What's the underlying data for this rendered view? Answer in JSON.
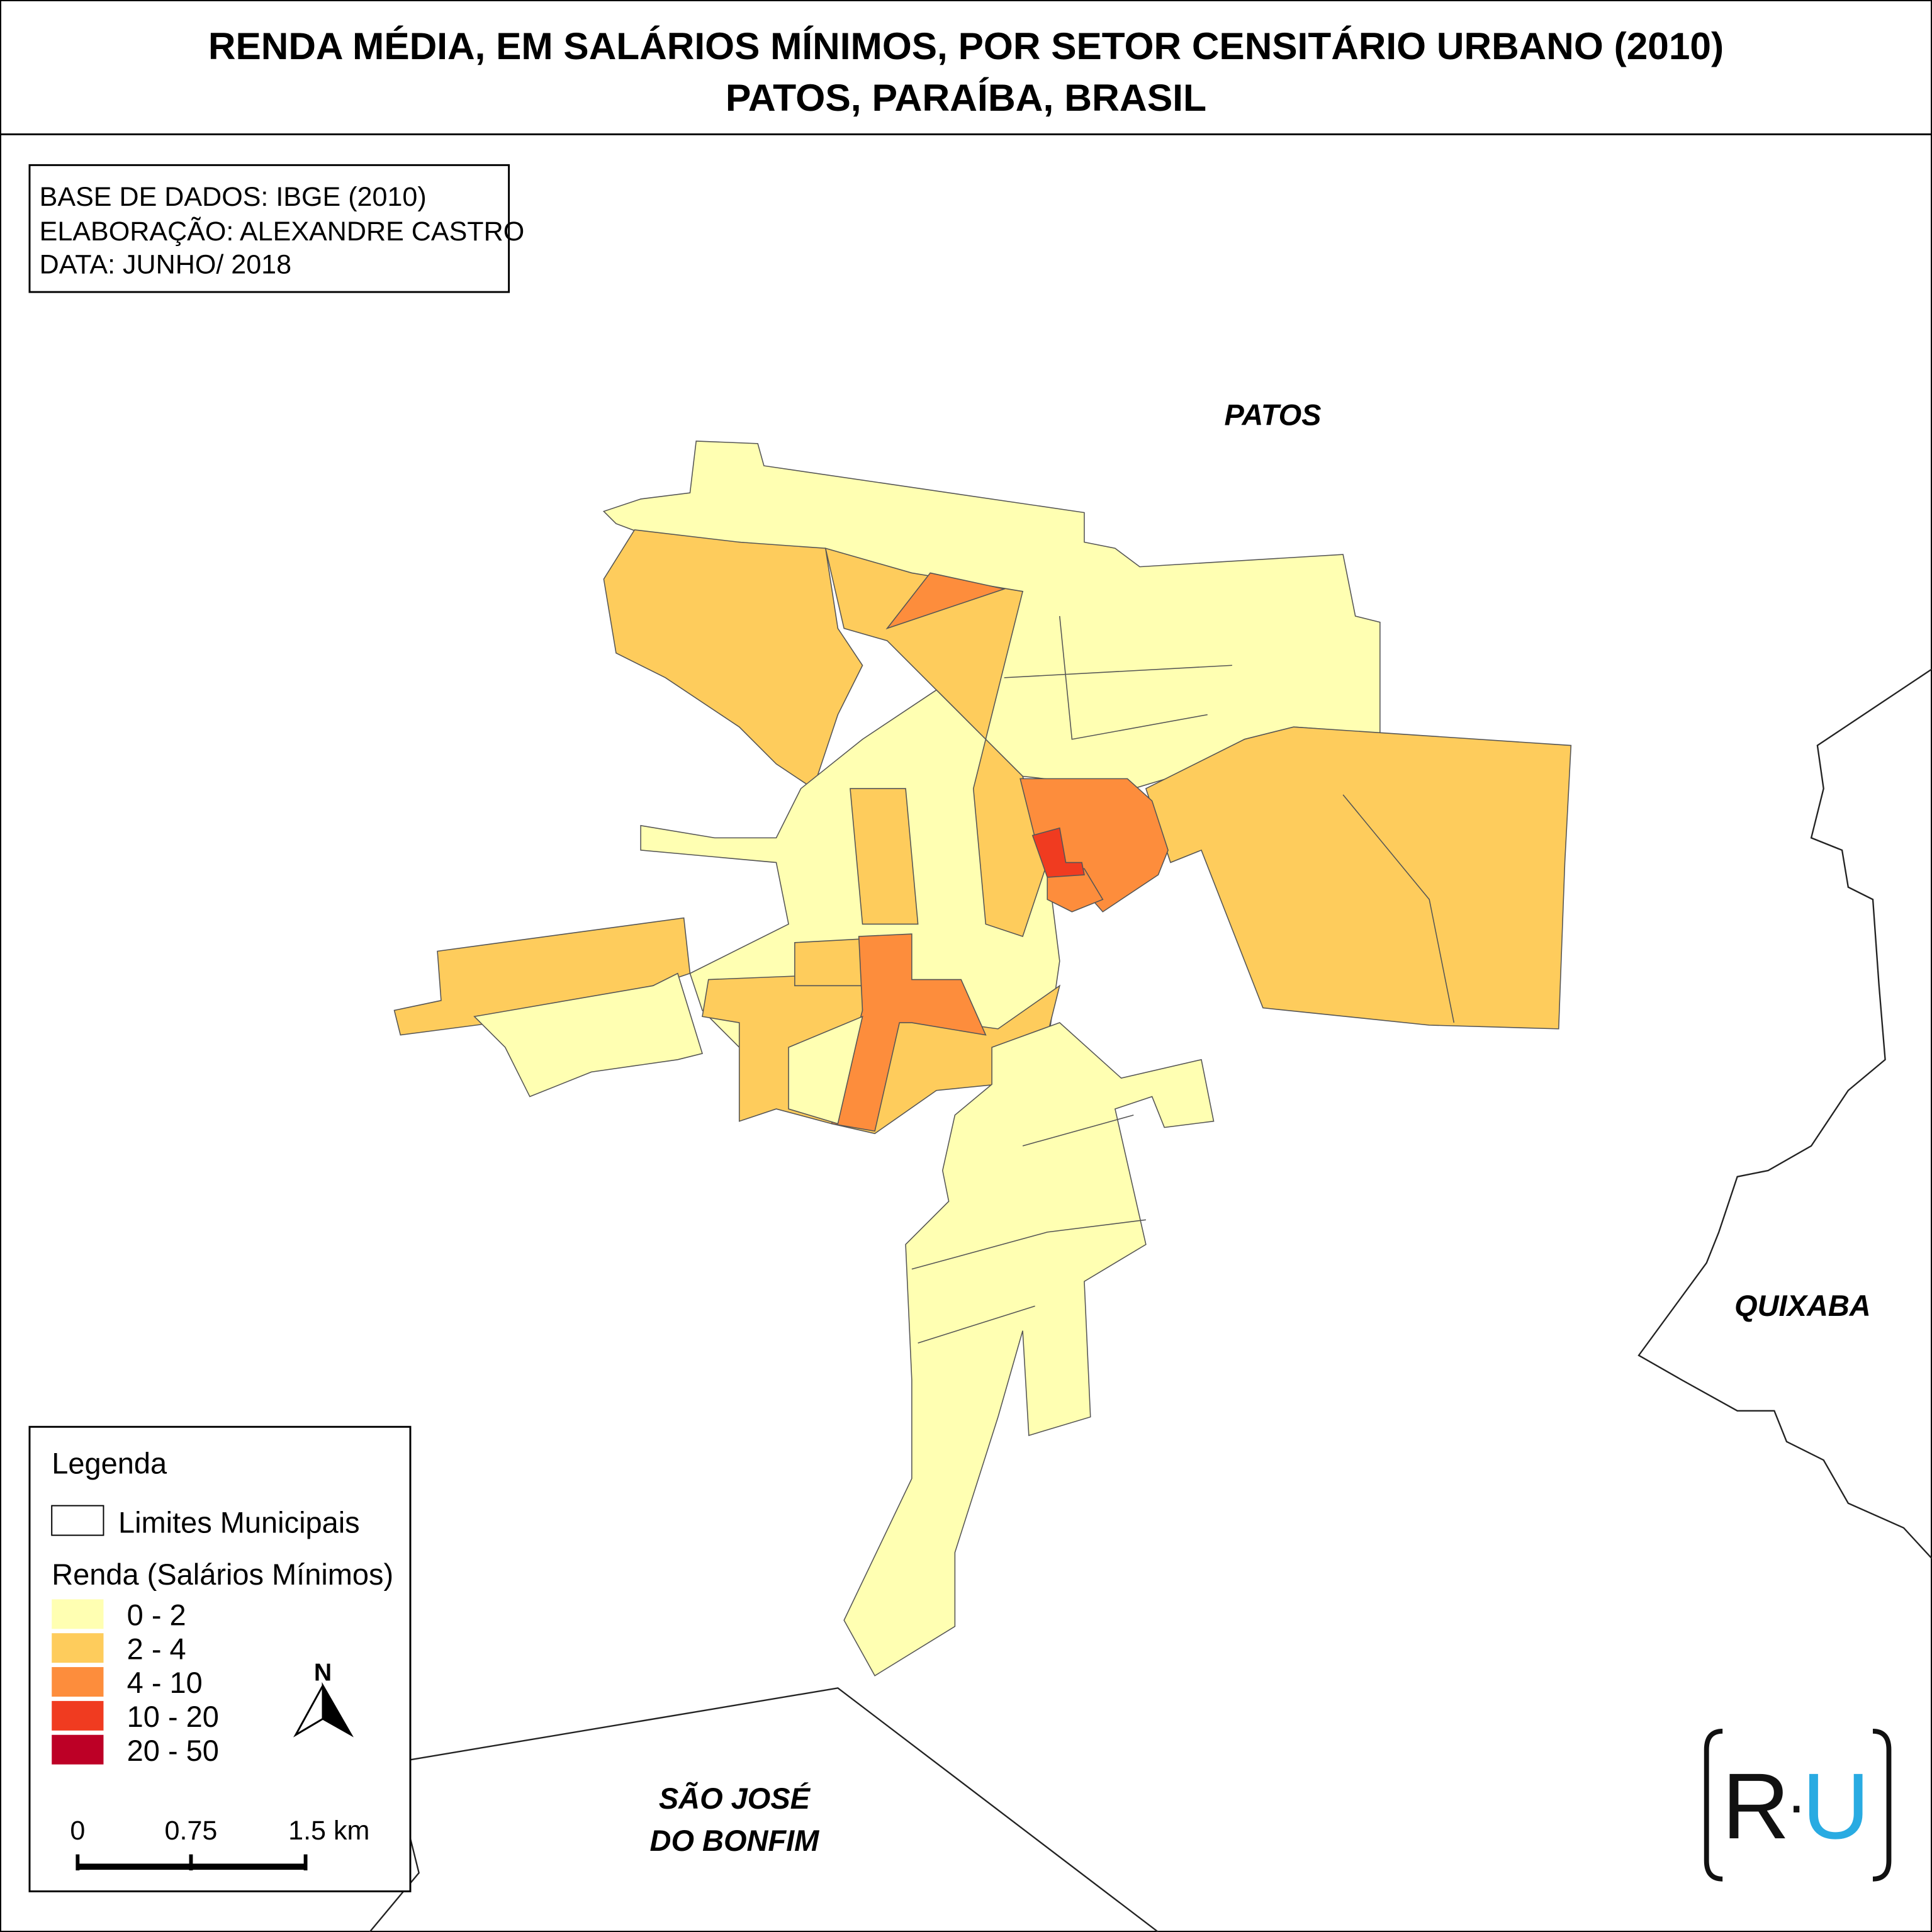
{
  "title": [
    "RENDA MÉDIA, EM SALÁRIOS MÍNIMOS, POR SETOR CENSITÁRIO URBANO (2010)",
    "PATOS, PARAÍBA, BRASIL"
  ],
  "info": [
    "BASE DE DADOS: IBGE (2010)",
    "ELABORAÇÃO: ALEXANDRE CASTRO",
    "DATA: JUNHO/ 2018"
  ],
  "places": {
    "patos": "PATOS",
    "quixaba": "QUIXABA",
    "sao_jose": [
      "SÃO JOSÉ",
      "DO BONFIM"
    ]
  },
  "legend": {
    "title": "Legenda",
    "boundary": "Limites Municipais",
    "subtitle": "Renda (Salários Mínimos)",
    "classes": [
      {
        "label": "0 - 2",
        "color": "#ffffb2"
      },
      {
        "label": "2 - 4",
        "color": "#fecc5c"
      },
      {
        "label": "4 - 10",
        "color": "#fd8d3c"
      },
      {
        "label": "10 - 20",
        "color": "#f03b20"
      },
      {
        "label": "20 - 50",
        "color": "#bd0026"
      }
    ]
  },
  "scale": [
    "0",
    "0.75",
    "1.5 km"
  ],
  "north": "N",
  "logo": {
    "left": "R",
    "dot": "·",
    "right": "U"
  }
}
